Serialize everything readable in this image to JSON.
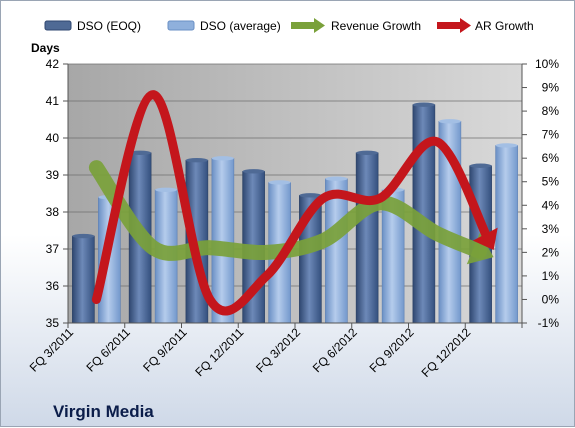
{
  "chart_data": {
    "type": "bar",
    "company": "Virgin Media",
    "ylabel": "Days",
    "categories": [
      "FQ 3/2011",
      "FQ 6/2011",
      "FQ 9/2011",
      "FQ 12/2011",
      "FQ 3/2012",
      "FQ 6/2012",
      "FQ 9/2012",
      "FQ 12/2012"
    ],
    "ylim": [
      35,
      42
    ],
    "y_ticks": [
      "35",
      "36",
      "37",
      "38",
      "39",
      "40",
      "41",
      "42"
    ],
    "y2lim": [
      -1,
      10
    ],
    "y2_ticks": [
      "-1%",
      "0%",
      "1%",
      "2%",
      "3%",
      "4%",
      "5%",
      "6%",
      "7%",
      "8%",
      "9%",
      "10%"
    ],
    "grid": true,
    "legend_position": "top",
    "series": [
      {
        "name": "DSO (EOQ)",
        "type": "bar",
        "axis": "left",
        "color": "#4f6a95",
        "values": [
          37.35,
          39.6,
          39.4,
          39.1,
          38.45,
          39.6,
          40.9,
          39.25
        ]
      },
      {
        "name": "DSO (average)",
        "type": "bar",
        "axis": "left",
        "color": "#8fb0dc",
        "values": [
          38.4,
          38.6,
          39.45,
          38.8,
          38.9,
          38.6,
          40.45,
          39.8
        ]
      },
      {
        "name": "Revenue Growth",
        "type": "line",
        "axis": "right",
        "unit": "%",
        "color": "#7aa13a",
        "values": [
          5.6,
          2.2,
          2.2,
          2.0,
          2.5,
          4.1,
          2.8,
          1.8
        ]
      },
      {
        "name": "AR Growth",
        "type": "line",
        "axis": "right",
        "unit": "%",
        "color": "#c4161c",
        "values": [
          0.0,
          8.7,
          0.0,
          1.0,
          4.3,
          4.3,
          6.7,
          2.1
        ]
      }
    ]
  }
}
